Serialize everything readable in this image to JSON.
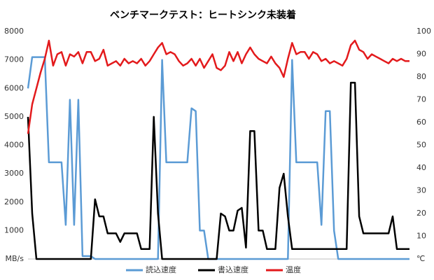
{
  "chart_data": {
    "type": "line",
    "title": "ベンチマークテスト：ヒートシンク未装着",
    "ylim": [
      0,
      8000
    ],
    "yticks": [
      {
        "value": 0,
        "label": "MB/s"
      },
      1000,
      2000,
      3000,
      4000,
      5000,
      6000,
      7000,
      8000
    ],
    "y2lim": [
      0,
      100
    ],
    "y2ticks": [
      {
        "value": 0,
        "label": "℃"
      },
      10,
      20,
      30,
      40,
      50,
      60,
      70,
      80,
      90,
      100
    ],
    "grid": false,
    "legend": "bottom",
    "series": [
      {
        "name": "読込速度",
        "color": "#5b9bd5",
        "values": [
          6000,
          7100,
          7100,
          7100,
          7100,
          3400,
          3400,
          3400,
          3400,
          1200,
          5600,
          1200,
          5600,
          100,
          100,
          100,
          0,
          0,
          0,
          0,
          0,
          0,
          0,
          0,
          0,
          0,
          0,
          0,
          0,
          0,
          0,
          0,
          7000,
          3400,
          3400,
          3400,
          3400,
          3400,
          3400,
          5300,
          5200,
          1000,
          1000,
          0,
          0,
          0,
          0,
          0,
          0,
          0,
          0,
          0,
          0,
          0,
          0,
          0,
          0,
          0,
          0,
          0,
          0,
          0,
          0,
          7000,
          3400,
          3400,
          3400,
          3400,
          3400,
          3400,
          1200,
          5200,
          5200,
          1000,
          0,
          0,
          0,
          0,
          0,
          0,
          0,
          0,
          0,
          0,
          0,
          0,
          0,
          0,
          0,
          0,
          0,
          0
        ]
      },
      {
        "name": "書込速度",
        "color": "#000000",
        "values": [
          5000,
          1600,
          0,
          0,
          0,
          0,
          0,
          0,
          0,
          0,
          0,
          0,
          0,
          0,
          0,
          0,
          2100,
          1500,
          1500,
          900,
          900,
          900,
          600,
          900,
          900,
          900,
          900,
          350,
          350,
          350,
          5000,
          1600,
          0,
          0,
          0,
          0,
          0,
          0,
          0,
          0,
          0,
          0,
          0,
          0,
          0,
          0,
          1600,
          1500,
          1000,
          1000,
          1700,
          1800,
          400,
          4500,
          4500,
          1000,
          1000,
          350,
          350,
          350,
          2500,
          3000,
          1500,
          350,
          350,
          350,
          350,
          350,
          350,
          350,
          350,
          350,
          350,
          350,
          350,
          350,
          350,
          6200,
          6200,
          1500,
          900,
          900,
          900,
          900,
          900,
          900,
          900,
          1500,
          350,
          350,
          350,
          350
        ]
      },
      {
        "name": "温度",
        "color": "#e31a1c",
        "axis": "y2",
        "values": [
          55,
          68,
          75,
          82,
          88,
          96,
          85,
          90,
          91,
          85,
          90,
          89,
          91,
          86,
          91,
          91,
          87,
          88,
          92,
          85,
          86,
          87,
          85,
          88,
          86,
          87,
          86,
          88,
          85,
          87,
          90,
          93,
          95,
          90,
          91,
          90,
          87,
          85,
          86,
          88,
          85,
          88,
          84,
          87,
          90,
          84,
          83,
          85,
          91,
          87,
          91,
          86,
          90,
          93,
          90,
          88,
          87,
          86,
          89,
          86,
          84,
          80,
          88,
          95,
          90,
          91,
          91,
          88,
          91,
          90,
          87,
          88,
          86,
          87,
          86,
          85,
          88,
          94,
          96,
          92,
          91,
          88,
          90,
          89,
          88,
          87,
          86,
          88,
          87,
          88,
          87,
          87
        ]
      }
    ]
  }
}
